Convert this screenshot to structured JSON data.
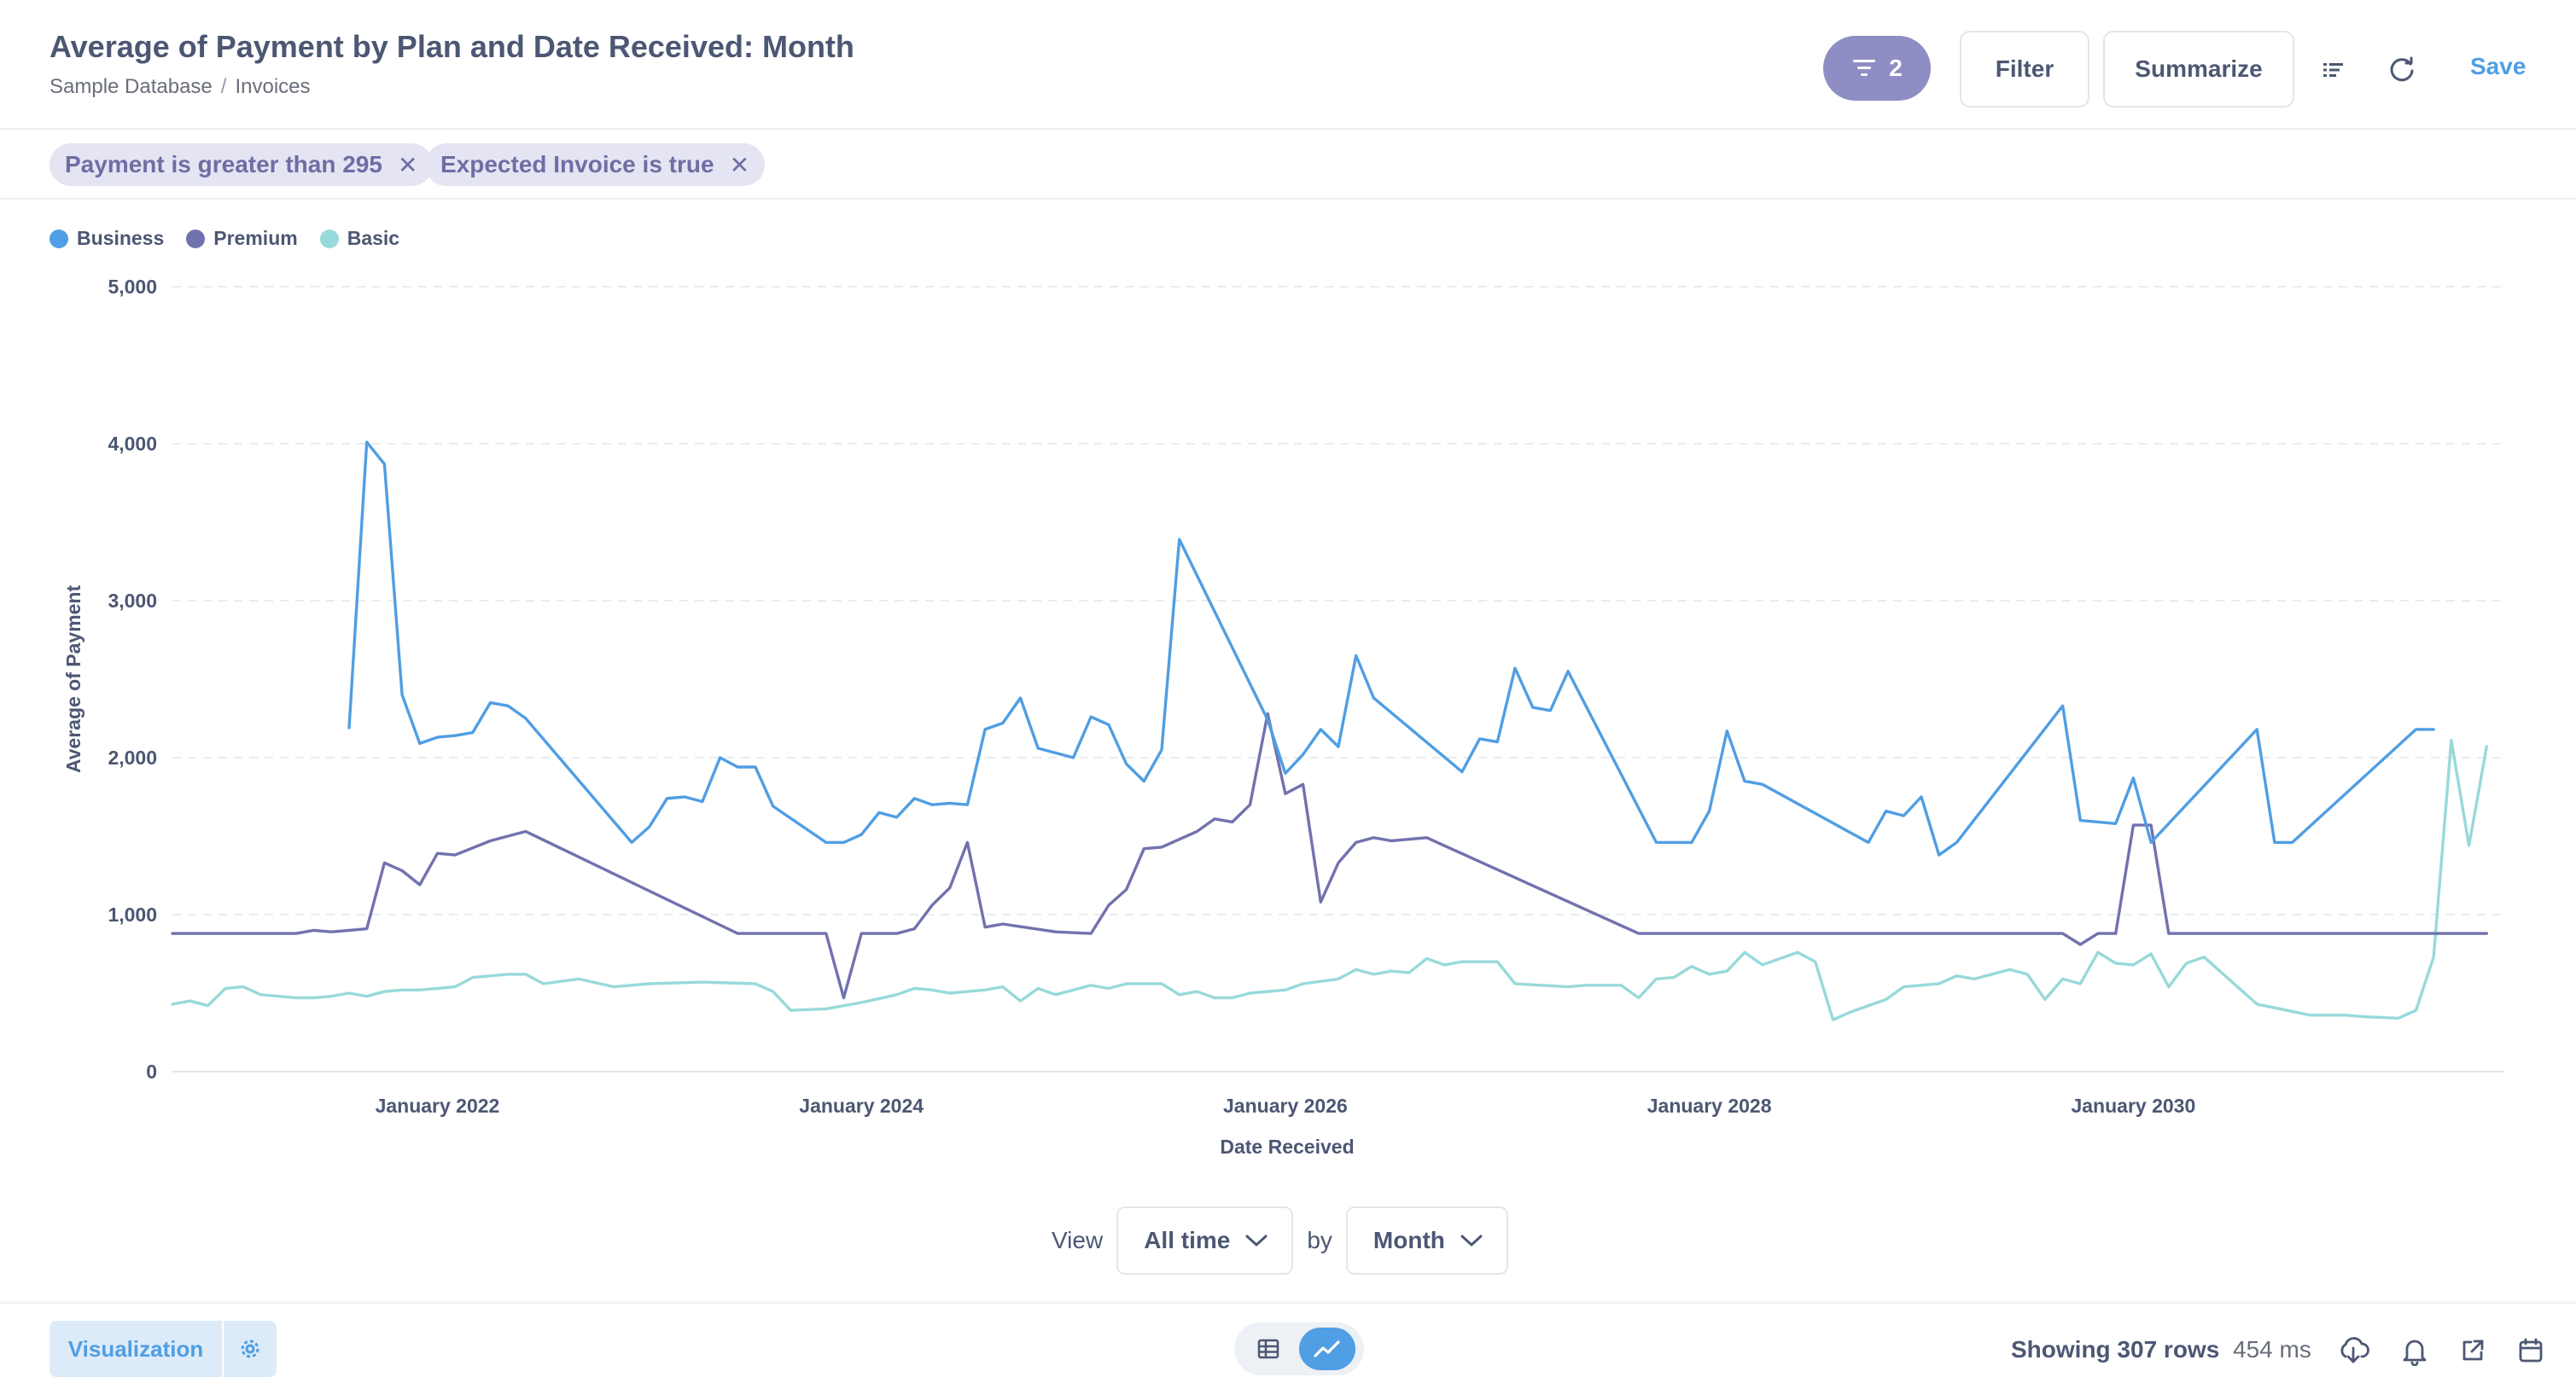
{
  "header": {
    "title": "Average of Payment by Plan and Date Received: Month",
    "breadcrumb": [
      "Sample Database",
      "Invoices"
    ],
    "breadcrumb_sep": "/",
    "filter_count": "2",
    "filter_label": "Filter",
    "summarize_label": "Summarize",
    "save_label": "Save"
  },
  "filters": [
    {
      "label": "Payment is greater than 295"
    },
    {
      "label": "Expected Invoice is true"
    }
  ],
  "legend": [
    {
      "name": "Business",
      "color": "#509ee3"
    },
    {
      "name": "Premium",
      "color": "#7172ad"
    },
    {
      "name": "Basic",
      "color": "#98d9d9"
    }
  ],
  "chart_data": {
    "type": "line",
    "xlabel": "Date Received",
    "ylabel": "Average of Payment",
    "ylim": [
      0,
      5000
    ],
    "y_ticks": [
      0,
      1000,
      2000,
      3000,
      4000,
      5000
    ],
    "y_tick_labels": [
      "0",
      "1,000",
      "2,000",
      "3,000",
      "4,000",
      "5,000"
    ],
    "x_range": [
      "2020-10",
      "2031-10"
    ],
    "x_ticks": [
      {
        "x": "2022-01",
        "label": "January 2022"
      },
      {
        "x": "2024-01",
        "label": "January 2024"
      },
      {
        "x": "2026-01",
        "label": "January 2026"
      },
      {
        "x": "2028-01",
        "label": "January 2028"
      },
      {
        "x": "2030-01",
        "label": "January 2030"
      }
    ],
    "grid": "horizontal dashed",
    "legend_position": "top-left",
    "series": [
      {
        "name": "Business",
        "color": "#509ee3",
        "points": [
          [
            "2021-08",
            2190
          ],
          [
            "2021-09",
            4010
          ],
          [
            "2021-10",
            3870
          ],
          [
            "2021-11",
            2400
          ],
          [
            "2021-12",
            2090
          ],
          [
            "2022-01",
            2130
          ],
          [
            "2022-02",
            2140
          ],
          [
            "2022-03",
            2160
          ],
          [
            "2022-04",
            2350
          ],
          [
            "2022-05",
            2330
          ],
          [
            "2022-06",
            2250
          ],
          [
            "2022-12",
            1460
          ],
          [
            "2023-01",
            1560
          ],
          [
            "2023-02",
            1740
          ],
          [
            "2023-03",
            1750
          ],
          [
            "2023-04",
            1720
          ],
          [
            "2023-05",
            2000
          ],
          [
            "2023-06",
            1940
          ],
          [
            "2023-07",
            1940
          ],
          [
            "2023-08",
            1690
          ],
          [
            "2023-11",
            1460
          ],
          [
            "2023-12",
            1460
          ],
          [
            "2024-01",
            1510
          ],
          [
            "2024-02",
            1650
          ],
          [
            "2024-03",
            1620
          ],
          [
            "2024-04",
            1740
          ],
          [
            "2024-05",
            1700
          ],
          [
            "2024-06",
            1710
          ],
          [
            "2024-07",
            1700
          ],
          [
            "2024-08",
            2180
          ],
          [
            "2024-09",
            2220
          ],
          [
            "2024-10",
            2380
          ],
          [
            "2024-11",
            2060
          ],
          [
            "2025-01",
            2000
          ],
          [
            "2025-02",
            2260
          ],
          [
            "2025-03",
            2210
          ],
          [
            "2025-04",
            1960
          ],
          [
            "2025-05",
            1850
          ],
          [
            "2025-06",
            2050
          ],
          [
            "2025-07",
            3390
          ],
          [
            "2025-12",
            2240
          ],
          [
            "2026-01",
            1900
          ],
          [
            "2026-02",
            2020
          ],
          [
            "2026-03",
            2180
          ],
          [
            "2026-04",
            2070
          ],
          [
            "2026-05",
            2650
          ],
          [
            "2026-06",
            2380
          ],
          [
            "2026-11",
            1910
          ],
          [
            "2026-12",
            2120
          ],
          [
            "2027-01",
            2100
          ],
          [
            "2027-02",
            2570
          ],
          [
            "2027-03",
            2320
          ],
          [
            "2027-04",
            2300
          ],
          [
            "2027-05",
            2550
          ],
          [
            "2027-10",
            1460
          ],
          [
            "2027-11",
            1460
          ],
          [
            "2027-12",
            1460
          ],
          [
            "2028-01",
            1660
          ],
          [
            "2028-02",
            2170
          ],
          [
            "2028-03",
            1850
          ],
          [
            "2028-04",
            1830
          ],
          [
            "2028-10",
            1460
          ],
          [
            "2028-11",
            1660
          ],
          [
            "2028-12",
            1630
          ],
          [
            "2029-01",
            1750
          ],
          [
            "2029-02",
            1380
          ],
          [
            "2029-03",
            1460
          ],
          [
            "2029-09",
            2330
          ],
          [
            "2029-10",
            1600
          ],
          [
            "2029-12",
            1580
          ],
          [
            "2030-01",
            1870
          ],
          [
            "2030-02",
            1460
          ],
          [
            "2030-08",
            2180
          ],
          [
            "2030-09",
            1460
          ],
          [
            "2030-10",
            1460
          ],
          [
            "2031-05",
            2180
          ],
          [
            "2031-06",
            2180
          ]
        ]
      },
      {
        "name": "Premium",
        "color": "#7172ad",
        "points": [
          [
            "2020-10",
            880
          ],
          [
            "2021-05",
            880
          ],
          [
            "2021-06",
            900
          ],
          [
            "2021-07",
            890
          ],
          [
            "2021-08",
            900
          ],
          [
            "2021-09",
            910
          ],
          [
            "2021-10",
            1330
          ],
          [
            "2021-11",
            1280
          ],
          [
            "2021-12",
            1190
          ],
          [
            "2022-01",
            1390
          ],
          [
            "2022-02",
            1380
          ],
          [
            "2022-04",
            1470
          ],
          [
            "2022-06",
            1530
          ],
          [
            "2023-06",
            880
          ],
          [
            "2023-11",
            880
          ],
          [
            "2023-12",
            470
          ],
          [
            "2024-01",
            880
          ],
          [
            "2024-03",
            880
          ],
          [
            "2024-04",
            910
          ],
          [
            "2024-05",
            1060
          ],
          [
            "2024-06",
            1170
          ],
          [
            "2024-07",
            1460
          ],
          [
            "2024-08",
            920
          ],
          [
            "2024-09",
            940
          ],
          [
            "2024-12",
            890
          ],
          [
            "2025-02",
            880
          ],
          [
            "2025-03",
            1060
          ],
          [
            "2025-04",
            1160
          ],
          [
            "2025-05",
            1420
          ],
          [
            "2025-06",
            1430
          ],
          [
            "2025-07",
            1480
          ],
          [
            "2025-08",
            1530
          ],
          [
            "2025-09",
            1610
          ],
          [
            "2025-10",
            1590
          ],
          [
            "2025-11",
            1700
          ],
          [
            "2025-12",
            2280
          ],
          [
            "2026-01",
            1770
          ],
          [
            "2026-02",
            1830
          ],
          [
            "2026-03",
            1080
          ],
          [
            "2026-04",
            1330
          ],
          [
            "2026-05",
            1460
          ],
          [
            "2026-06",
            1490
          ],
          [
            "2026-07",
            1470
          ],
          [
            "2026-09",
            1490
          ],
          [
            "2027-09",
            880
          ],
          [
            "2029-09",
            880
          ],
          [
            "2029-10",
            810
          ],
          [
            "2029-11",
            880
          ],
          [
            "2029-12",
            880
          ],
          [
            "2030-01",
            1570
          ],
          [
            "2030-02",
            1570
          ],
          [
            "2030-03",
            880
          ],
          [
            "2031-09",
            880
          ]
        ]
      },
      {
        "name": "Basic",
        "color": "#98d9d9",
        "points": [
          [
            "2020-10",
            430
          ],
          [
            "2020-11",
            450
          ],
          [
            "2020-12",
            420
          ],
          [
            "2021-01",
            530
          ],
          [
            "2021-02",
            540
          ],
          [
            "2021-03",
            490
          ],
          [
            "2021-04",
            480
          ],
          [
            "2021-05",
            470
          ],
          [
            "2021-06",
            470
          ],
          [
            "2021-07",
            480
          ],
          [
            "2021-08",
            500
          ],
          [
            "2021-09",
            480
          ],
          [
            "2021-10",
            510
          ],
          [
            "2021-11",
            520
          ],
          [
            "2021-12",
            520
          ],
          [
            "2022-01",
            530
          ],
          [
            "2022-02",
            540
          ],
          [
            "2022-03",
            600
          ],
          [
            "2022-04",
            610
          ],
          [
            "2022-05",
            620
          ],
          [
            "2022-06",
            620
          ],
          [
            "2022-07",
            560
          ],
          [
            "2022-09",
            590
          ],
          [
            "2022-11",
            540
          ],
          [
            "2023-01",
            560
          ],
          [
            "2023-04",
            570
          ],
          [
            "2023-07",
            560
          ],
          [
            "2023-08",
            510
          ],
          [
            "2023-09",
            390
          ],
          [
            "2023-11",
            400
          ],
          [
            "2024-01",
            440
          ],
          [
            "2024-03",
            490
          ],
          [
            "2024-04",
            530
          ],
          [
            "2024-05",
            520
          ],
          [
            "2024-06",
            500
          ],
          [
            "2024-08",
            520
          ],
          [
            "2024-09",
            540
          ],
          [
            "2024-10",
            450
          ],
          [
            "2024-11",
            530
          ],
          [
            "2024-12",
            490
          ],
          [
            "2025-02",
            550
          ],
          [
            "2025-03",
            530
          ],
          [
            "2025-04",
            560
          ],
          [
            "2025-06",
            560
          ],
          [
            "2025-07",
            490
          ],
          [
            "2025-08",
            510
          ],
          [
            "2025-09",
            470
          ],
          [
            "2025-10",
            470
          ],
          [
            "2025-11",
            500
          ],
          [
            "2026-01",
            520
          ],
          [
            "2026-02",
            560
          ],
          [
            "2026-04",
            590
          ],
          [
            "2026-05",
            650
          ],
          [
            "2026-06",
            620
          ],
          [
            "2026-07",
            640
          ],
          [
            "2026-08",
            630
          ],
          [
            "2026-09",
            720
          ],
          [
            "2026-10",
            680
          ],
          [
            "2026-11",
            700
          ],
          [
            "2027-01",
            700
          ],
          [
            "2027-02",
            560
          ],
          [
            "2027-05",
            540
          ],
          [
            "2027-06",
            550
          ],
          [
            "2027-08",
            550
          ],
          [
            "2027-09",
            470
          ],
          [
            "2027-10",
            590
          ],
          [
            "2027-11",
            600
          ],
          [
            "2027-12",
            670
          ],
          [
            "2028-01",
            620
          ],
          [
            "2028-02",
            640
          ],
          [
            "2028-03",
            760
          ],
          [
            "2028-04",
            680
          ],
          [
            "2028-06",
            760
          ],
          [
            "2028-07",
            700
          ],
          [
            "2028-08",
            330
          ],
          [
            "2028-09",
            380
          ],
          [
            "2028-11",
            460
          ],
          [
            "2028-12",
            540
          ],
          [
            "2029-02",
            560
          ],
          [
            "2029-03",
            610
          ],
          [
            "2029-04",
            590
          ],
          [
            "2029-05",
            620
          ],
          [
            "2029-06",
            650
          ],
          [
            "2029-07",
            620
          ],
          [
            "2029-08",
            460
          ],
          [
            "2029-09",
            590
          ],
          [
            "2029-10",
            560
          ],
          [
            "2029-11",
            760
          ],
          [
            "2029-12",
            690
          ],
          [
            "2030-01",
            680
          ],
          [
            "2030-02",
            750
          ],
          [
            "2030-03",
            540
          ],
          [
            "2030-04",
            690
          ],
          [
            "2030-05",
            730
          ],
          [
            "2030-08",
            430
          ],
          [
            "2030-11",
            360
          ],
          [
            "2031-01",
            360
          ],
          [
            "2031-02",
            350
          ],
          [
            "2031-04",
            340
          ],
          [
            "2031-05",
            390
          ],
          [
            "2031-06",
            730
          ],
          [
            "2031-07",
            2110
          ],
          [
            "2031-08",
            1440
          ],
          [
            "2031-09",
            2070
          ]
        ]
      }
    ]
  },
  "view_controls": {
    "view_label": "View",
    "range_value": "All time",
    "by_label": "by",
    "granularity_value": "Month"
  },
  "footer": {
    "visualization_label": "Visualization",
    "rows_text": "Showing 307 rows",
    "duration_text": "454 ms"
  },
  "icons": {
    "filter_badge": "filter-icon",
    "list": "list-icon",
    "refresh": "refresh-icon",
    "settings": "gear-icon",
    "table_view": "table-icon",
    "chart_view": "line-chart-icon",
    "download": "download-icon",
    "alert": "bell-icon",
    "share": "external-link-icon",
    "schedule": "calendar-icon"
  }
}
